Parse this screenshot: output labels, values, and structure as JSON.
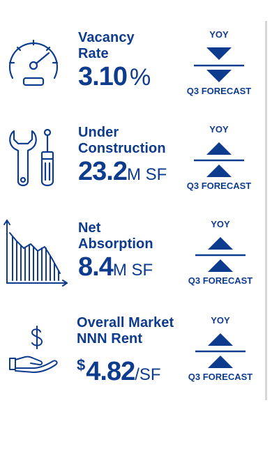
{
  "metrics": [
    {
      "label_line1": "Vacancy",
      "label_line2": "Rate",
      "value": "3.10",
      "unit": "%",
      "icon": "speedometer-icon",
      "yoy_label": "YOY",
      "forecast_label": "Q3 FORECAST",
      "yoy_trend": "down",
      "forecast_trend": "down"
    },
    {
      "label_line1": "Under",
      "label_line2": "Construction",
      "value": "23.2",
      "unit": "M SF",
      "icon": "tools-icon",
      "yoy_label": "YOY",
      "forecast_label": "Q3 FORECAST",
      "yoy_trend": "up",
      "forecast_trend": "up"
    },
    {
      "label_line1": "Net",
      "label_line2": "Absorption",
      "value": "8.4",
      "unit": "M SF",
      "icon": "bar-chart-icon",
      "yoy_label": "YOY",
      "forecast_label": "Q3 FORECAST",
      "yoy_trend": "up",
      "forecast_trend": "up"
    },
    {
      "label_line1": "Overall Market",
      "label_line2": "NNN Rent",
      "prefix": "$",
      "value": "4.82",
      "unit": "/SF",
      "icon": "dollar-hand-icon",
      "yoy_label": "YOY",
      "forecast_label": "Q3 FORECAST",
      "yoy_trend": "up",
      "forecast_trend": "up"
    }
  ],
  "colors": {
    "primary": "#0d3b8e",
    "divider": "#d6d6d6"
  }
}
